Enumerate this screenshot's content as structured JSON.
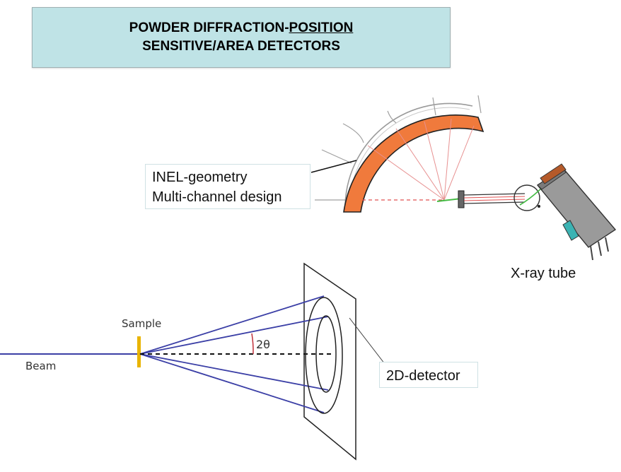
{
  "title": {
    "line1_prefix": "POWDER DIFFRACTION-",
    "line1_underlined": "POSITION",
    "line2": "SENSITIVE/AREA DETECTORS"
  },
  "labels": {
    "inel_line1": "INEL-geometry",
    "inel_line2": "Multi-channel design",
    "xray_tube": "X-ray tube",
    "detector_2d": "2D-detector",
    "sample": "Sample",
    "beam": "Beam",
    "two_theta": "2θ"
  },
  "colors": {
    "title_bg": "#bfe3e6",
    "detector_arc": "#f07a3c",
    "beam_blue": "#3b3fa6",
    "sample_gold": "#e9b400",
    "ray_pink": "#e79090"
  }
}
